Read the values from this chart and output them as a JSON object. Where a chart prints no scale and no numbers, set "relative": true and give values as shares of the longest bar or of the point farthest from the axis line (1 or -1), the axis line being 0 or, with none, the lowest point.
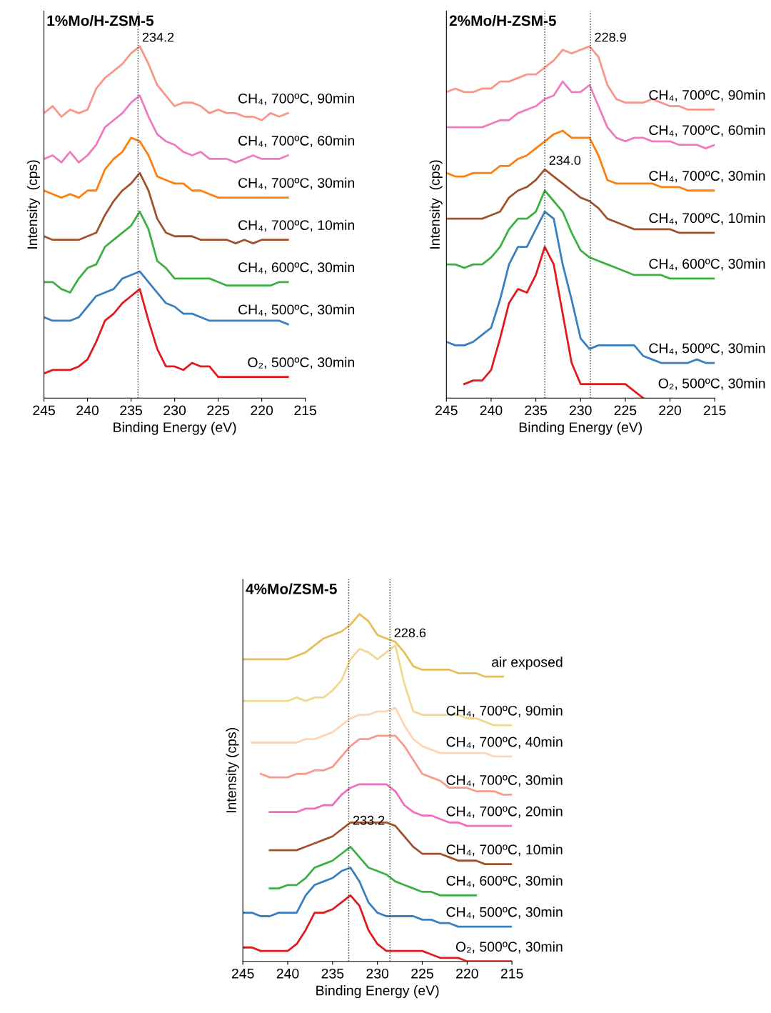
{
  "chart_data": [
    {
      "type": "line",
      "title": "1%Mo/H-ZSM-5",
      "xlabel": "Binding Energy (eV)",
      "ylabel": "Intensity  (cps)",
      "relative": true,
      "xlim": [
        245,
        215
      ],
      "xticks": [
        245,
        240,
        235,
        230,
        225,
        220,
        215
      ],
      "grid": false,
      "legend": false,
      "marker": "none",
      "line_style": "solid",
      "x": [
        245,
        244,
        243,
        242,
        241,
        240,
        239,
        238,
        237,
        236,
        235,
        234,
        233,
        232,
        231,
        230,
        229,
        228,
        227,
        226,
        225,
        224,
        223,
        222,
        221,
        220,
        219,
        218,
        217
      ],
      "series": [
        {
          "name": "CH₄, 700ºC, 90min",
          "color": "#f8968a",
          "values": [
            0.81,
            0.83,
            0.8,
            0.82,
            0.81,
            0.82,
            0.88,
            0.91,
            0.93,
            0.95,
            0.98,
            1.0,
            0.95,
            0.89,
            0.86,
            0.83,
            0.84,
            0.84,
            0.83,
            0.81,
            0.82,
            0.81,
            0.81,
            0.8,
            0.8,
            0.79,
            0.81,
            0.8,
            0.81
          ]
        },
        {
          "name": "CH₄, 700ºC, 60min",
          "color": "#f07ac0",
          "values": [
            0.68,
            0.69,
            0.67,
            0.7,
            0.67,
            0.69,
            0.72,
            0.77,
            0.79,
            0.81,
            0.84,
            0.86,
            0.8,
            0.75,
            0.73,
            0.72,
            0.7,
            0.69,
            0.7,
            0.68,
            0.68,
            0.68,
            0.67,
            0.68,
            0.69,
            0.68,
            0.68,
            0.68,
            0.69
          ]
        },
        {
          "name": "CH₄, 700ºC, 30min",
          "color": "#ff7f0e",
          "values": [
            0.59,
            0.58,
            0.57,
            0.58,
            0.57,
            0.59,
            0.59,
            0.65,
            0.68,
            0.7,
            0.74,
            0.73,
            0.69,
            0.63,
            0.62,
            0.61,
            0.61,
            0.59,
            0.59,
            0.58,
            0.57,
            0.57,
            0.57,
            0.57,
            0.57,
            0.57,
            0.57,
            0.57,
            0.57
          ]
        },
        {
          "name": "CH₄, 700ºC, 10min",
          "color": "#a0522d",
          "values": [
            0.46,
            0.45,
            0.45,
            0.45,
            0.45,
            0.46,
            0.47,
            0.52,
            0.56,
            0.59,
            0.61,
            0.64,
            0.59,
            0.51,
            0.47,
            0.46,
            0.46,
            0.46,
            0.45,
            0.45,
            0.45,
            0.45,
            0.44,
            0.45,
            0.44,
            0.45,
            0.45,
            0.45,
            0.45
          ]
        },
        {
          "name": "CH₄, 600ºC, 30min",
          "color": "#3cb043",
          "values": [
            0.33,
            0.33,
            0.31,
            0.3,
            0.34,
            0.37,
            0.38,
            0.43,
            0.45,
            0.47,
            0.49,
            0.53,
            0.48,
            0.39,
            0.37,
            0.34,
            0.34,
            0.34,
            0.34,
            0.34,
            0.33,
            0.32,
            0.32,
            0.32,
            0.32,
            0.32,
            0.32,
            0.33,
            0.33
          ]
        },
        {
          "name": "CH₄, 500ºC, 30min",
          "color": "#3a7fc0",
          "values": [
            0.23,
            0.22,
            0.22,
            0.22,
            0.23,
            0.26,
            0.29,
            0.3,
            0.31,
            0.34,
            0.35,
            0.36,
            0.33,
            0.3,
            0.27,
            0.26,
            0.24,
            0.24,
            0.23,
            0.22,
            0.22,
            0.22,
            0.22,
            0.22,
            0.22,
            0.22,
            0.22,
            0.22,
            0.21
          ]
        },
        {
          "name": "O₂, 500ºC, 30min",
          "color": "#e31a1c",
          "values": [
            0.07,
            0.08,
            0.08,
            0.08,
            0.09,
            0.11,
            0.16,
            0.22,
            0.24,
            0.27,
            0.29,
            0.31,
            0.22,
            0.14,
            0.09,
            0.09,
            0.08,
            0.1,
            0.09,
            0.09,
            0.06,
            0.06,
            0.06,
            0.06,
            0.06,
            0.06,
            0.06,
            0.06,
            0.06
          ]
        }
      ],
      "ref_lines": [
        {
          "axis": "x",
          "value": 234.2,
          "line_style": "dotted",
          "color": "#333333"
        }
      ],
      "annotations": [
        {
          "text": "234.2",
          "x": 234.2,
          "y": 1.0
        }
      ]
    },
    {
      "type": "line",
      "title": "2%Mo/H-ZSM-5",
      "xlabel": "Binding Energy (eV)",
      "ylabel": "Intensity  (cps)",
      "relative": true,
      "xlim": [
        245,
        215
      ],
      "xticks": [
        245,
        240,
        235,
        230,
        225,
        220,
        215
      ],
      "grid": false,
      "legend": false,
      "marker": "none",
      "line_style": "solid",
      "x": [
        245,
        244,
        243,
        242,
        241,
        240,
        239,
        238,
        237,
        236,
        235,
        234,
        233,
        232,
        231,
        230,
        229,
        228,
        227,
        226,
        225,
        224,
        223,
        222,
        221,
        220,
        219,
        218,
        217,
        216,
        215
      ],
      "series": [
        {
          "name": "CH₄, 700ºC, 90min",
          "color": "#f8968a",
          "values": [
            0.87,
            0.88,
            0.87,
            0.87,
            0.88,
            0.88,
            0.9,
            0.9,
            0.91,
            0.92,
            0.92,
            0.94,
            0.96,
            0.99,
            0.98,
            0.99,
            1.0,
            0.97,
            0.89,
            0.85,
            0.84,
            0.84,
            0.84,
            0.85,
            0.84,
            0.83,
            0.83,
            0.82,
            0.82,
            0.82,
            0.82
          ]
        },
        {
          "name": "CH₄, 700ºC, 60min",
          "color": "#f07ac0",
          "values": [
            0.77,
            0.77,
            0.77,
            0.77,
            0.77,
            0.78,
            0.79,
            0.79,
            0.81,
            0.82,
            0.83,
            0.85,
            0.86,
            0.9,
            0.87,
            0.87,
            0.89,
            0.83,
            0.77,
            0.74,
            0.73,
            0.74,
            0.74,
            0.73,
            0.73,
            0.73,
            0.72,
            0.72,
            0.72,
            0.71,
            0.72
          ]
        },
        {
          "name": "CH₄, 700ºC, 30min",
          "color": "#ff7f0e",
          "values": [
            0.64,
            0.63,
            0.63,
            0.64,
            0.64,
            0.64,
            0.66,
            0.66,
            0.68,
            0.69,
            0.71,
            0.73,
            0.75,
            0.76,
            0.74,
            0.74,
            0.74,
            0.69,
            0.62,
            0.61,
            0.61,
            0.61,
            0.61,
            0.61,
            0.6,
            0.6,
            0.6,
            0.59,
            0.59,
            0.59,
            0.59
          ]
        },
        {
          "name": "CH₄, 700ºC, 10min",
          "color": "#a0522d",
          "values": [
            0.51,
            0.51,
            0.51,
            0.51,
            0.51,
            0.52,
            0.53,
            0.57,
            0.59,
            0.6,
            0.62,
            0.65,
            0.63,
            0.61,
            0.59,
            0.57,
            0.56,
            0.54,
            0.51,
            0.5,
            0.49,
            0.48,
            0.48,
            0.48,
            0.48,
            0.48,
            0.47,
            0.47,
            0.47,
            0.47,
            0.47
          ]
        },
        {
          "name": "CH₄, 600ºC, 30min",
          "color": "#3cb043",
          "values": [
            0.38,
            0.38,
            0.37,
            0.38,
            0.38,
            0.4,
            0.43,
            0.48,
            0.51,
            0.51,
            0.53,
            0.59,
            0.56,
            0.53,
            0.47,
            0.42,
            0.4,
            0.39,
            0.38,
            0.37,
            0.36,
            0.35,
            0.35,
            0.35,
            0.35,
            0.34,
            0.34,
            0.34,
            0.34,
            0.34,
            0.34
          ]
        },
        {
          "name": "CH₄, 500ºC, 30min",
          "color": "#3a7fc0",
          "values": [
            0.16,
            0.15,
            0.15,
            0.16,
            0.18,
            0.2,
            0.28,
            0.38,
            0.43,
            0.43,
            0.48,
            0.53,
            0.51,
            0.38,
            0.28,
            0.17,
            0.14,
            0.15,
            0.15,
            0.15,
            0.15,
            0.15,
            0.12,
            0.11,
            0.1,
            0.1,
            0.1,
            0.1,
            0.11,
            0.1,
            0.1
          ]
        },
        {
          "name": "O₂, 500ºC, 30min",
          "color": "#e31a1c",
          "values": [
            null,
            null,
            0.04,
            0.05,
            0.05,
            0.08,
            0.17,
            0.27,
            0.31,
            0.3,
            0.35,
            0.43,
            0.38,
            0.24,
            0.1,
            0.04,
            0.04,
            0.04,
            0.04,
            0.04,
            0.04,
            0.02,
            0.0,
            null,
            null,
            null,
            null,
            null,
            null,
            null,
            null
          ]
        }
      ],
      "ref_lines": [
        {
          "axis": "x",
          "value": 228.9,
          "line_style": "dotted",
          "color": "#333333"
        },
        {
          "axis": "x",
          "value": 234.0,
          "line_style": "dotted",
          "color": "#333333"
        }
      ],
      "annotations": [
        {
          "text": "228.9",
          "x": 228.9,
          "y": 1.0
        },
        {
          "text": "234.0",
          "x": 234.0,
          "y": 0.65
        }
      ]
    },
    {
      "type": "line",
      "title": "4%Mo/ZSM-5",
      "xlabel": "Binding Energy (eV)",
      "ylabel": "Intensity (cps)",
      "relative": true,
      "xlim": [
        245,
        215
      ],
      "xticks": [
        245,
        240,
        235,
        230,
        225,
        220,
        215
      ],
      "grid": false,
      "legend": false,
      "marker": "none",
      "line_style": "solid",
      "x": [
        245,
        244,
        243,
        242,
        241,
        240,
        239,
        238,
        237,
        236,
        235,
        234,
        233,
        232,
        231,
        230,
        229,
        228,
        227,
        226,
        225,
        224,
        223,
        222,
        221,
        220,
        219,
        218,
        217,
        216,
        215
      ],
      "series": [
        {
          "name": "air exposed",
          "color": "#e6be5a",
          "values": [
            0.87,
            0.87,
            0.87,
            0.87,
            0.87,
            0.87,
            0.88,
            0.89,
            0.91,
            0.93,
            0.94,
            0.95,
            0.97,
            1.0,
            0.98,
            0.94,
            0.93,
            0.92,
            0.89,
            0.85,
            0.84,
            0.84,
            0.84,
            0.84,
            0.83,
            0.83,
            0.83,
            0.82,
            0.82,
            0.82,
            null
          ]
        },
        {
          "name": "CH₄, 700ºC, 90min",
          "color": "#f0d890",
          "values": [
            0.75,
            0.75,
            0.75,
            0.75,
            0.75,
            0.75,
            0.76,
            0.75,
            0.76,
            0.76,
            0.78,
            0.81,
            0.87,
            0.9,
            0.89,
            0.87,
            0.89,
            0.91,
            0.8,
            0.72,
            0.71,
            0.71,
            0.71,
            0.71,
            0.71,
            0.7,
            0.7,
            0.69,
            0.68,
            0.68,
            0.68
          ]
        },
        {
          "name": "CH₄, 700ºC, 40min",
          "color": "#fdd5b5",
          "values": [
            null,
            0.63,
            0.63,
            0.63,
            0.63,
            0.63,
            0.63,
            0.64,
            0.64,
            0.65,
            0.66,
            0.68,
            0.7,
            0.71,
            0.71,
            0.72,
            0.72,
            0.73,
            0.68,
            0.64,
            0.62,
            0.61,
            0.6,
            0.6,
            0.6,
            0.6,
            0.6,
            0.6,
            0.59,
            0.59,
            0.59
          ]
        },
        {
          "name": "CH₄, 700ºC, 30min",
          "color": "#f89a8c",
          "values": [
            null,
            null,
            0.54,
            0.53,
            0.53,
            0.53,
            0.54,
            0.54,
            0.55,
            0.55,
            0.56,
            0.59,
            0.62,
            0.64,
            0.64,
            0.65,
            0.65,
            0.65,
            0.62,
            0.58,
            0.54,
            0.53,
            0.52,
            0.5,
            0.5,
            0.5,
            0.49,
            0.49,
            0.49,
            0.48,
            0.48
          ]
        },
        {
          "name": "CH₄, 700ºC, 20min",
          "color": "#f06ec0",
          "values": [
            null,
            null,
            null,
            0.43,
            0.43,
            0.43,
            0.43,
            0.44,
            0.44,
            0.45,
            0.45,
            0.48,
            0.5,
            0.51,
            0.51,
            0.51,
            0.51,
            0.49,
            0.45,
            0.43,
            0.42,
            0.42,
            0.41,
            0.4,
            0.4,
            0.39,
            0.39,
            0.39,
            0.39,
            0.39,
            0.39
          ]
        },
        {
          "name": "CH₄, 700ºC, 10min",
          "color": "#a0522d",
          "values": [
            null,
            null,
            null,
            0.32,
            0.32,
            0.32,
            0.32,
            0.33,
            0.34,
            0.35,
            0.36,
            0.38,
            0.4,
            0.4,
            0.4,
            0.4,
            0.4,
            0.39,
            0.36,
            0.33,
            0.31,
            0.31,
            0.31,
            0.3,
            0.29,
            0.29,
            0.29,
            0.28,
            0.28,
            0.28,
            0.28
          ]
        },
        {
          "name": "CH₄, 600ºC, 30min",
          "color": "#3cb043",
          "values": [
            null,
            null,
            null,
            0.21,
            0.21,
            0.22,
            0.22,
            0.24,
            0.27,
            0.28,
            0.29,
            0.31,
            0.33,
            0.3,
            0.27,
            0.26,
            0.25,
            0.23,
            0.22,
            0.21,
            0.2,
            0.2,
            0.19,
            0.19,
            0.19,
            0.19,
            0.19,
            null,
            null,
            null,
            null
          ]
        },
        {
          "name": "CH₄, 500ºC, 30min",
          "color": "#3a7fc0",
          "values": [
            0.14,
            0.14,
            0.13,
            0.13,
            0.14,
            0.14,
            0.14,
            0.19,
            0.22,
            0.23,
            0.24,
            0.26,
            0.27,
            0.23,
            0.17,
            0.14,
            0.13,
            0.13,
            0.13,
            0.13,
            0.12,
            0.12,
            0.11,
            0.11,
            0.1,
            0.1,
            0.1,
            0.1,
            0.1,
            0.1,
            0.1
          ]
        },
        {
          "name": "O₂, 500ºC, 30min",
          "color": "#e31a1c",
          "values": [
            0.04,
            0.04,
            0.03,
            0.03,
            0.03,
            0.03,
            0.05,
            0.09,
            0.14,
            0.14,
            0.15,
            0.17,
            0.19,
            0.16,
            0.09,
            0.05,
            0.03,
            0.03,
            0.03,
            0.03,
            0.03,
            0.02,
            0.01,
            0.01,
            0.01,
            0.0,
            0.0,
            0.0,
            0.0,
            0.0,
            0.0
          ]
        }
      ],
      "ref_lines": [
        {
          "axis": "x",
          "value": 228.6,
          "line_style": "dotted",
          "color": "#333333"
        },
        {
          "axis": "x",
          "value": 233.2,
          "line_style": "dotted",
          "color": "#333333"
        }
      ],
      "annotations": [
        {
          "text": "228.6",
          "x": 228.6,
          "y": 0.92
        },
        {
          "text": "233.2",
          "x": 233.2,
          "y": 0.38
        }
      ]
    }
  ]
}
